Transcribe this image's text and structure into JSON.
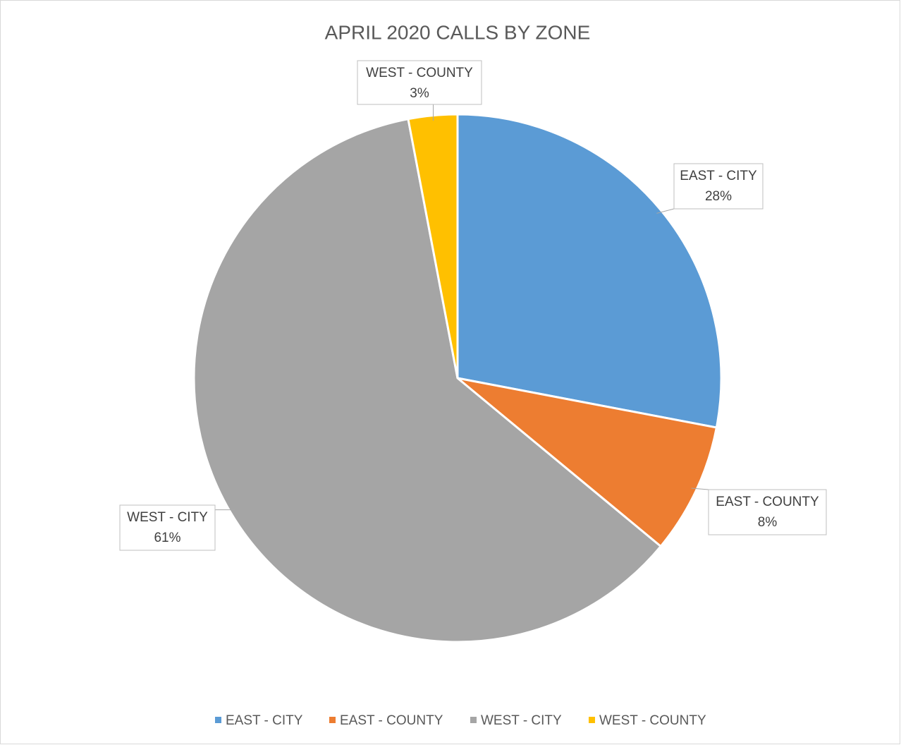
{
  "chart_data": {
    "type": "pie",
    "title": "APRIL 2020 CALLS BY ZONE",
    "categories": [
      "EAST - CITY",
      "EAST - COUNTY",
      "WEST - CITY",
      "WEST - COUNTY"
    ],
    "values": [
      28,
      8,
      61,
      3
    ],
    "value_labels": [
      "28%",
      "8%",
      "61%",
      "3%"
    ],
    "colors": [
      "#5b9bd5",
      "#ed7d31",
      "#a5a5a5",
      "#ffc000"
    ],
    "legend": "bottom"
  }
}
